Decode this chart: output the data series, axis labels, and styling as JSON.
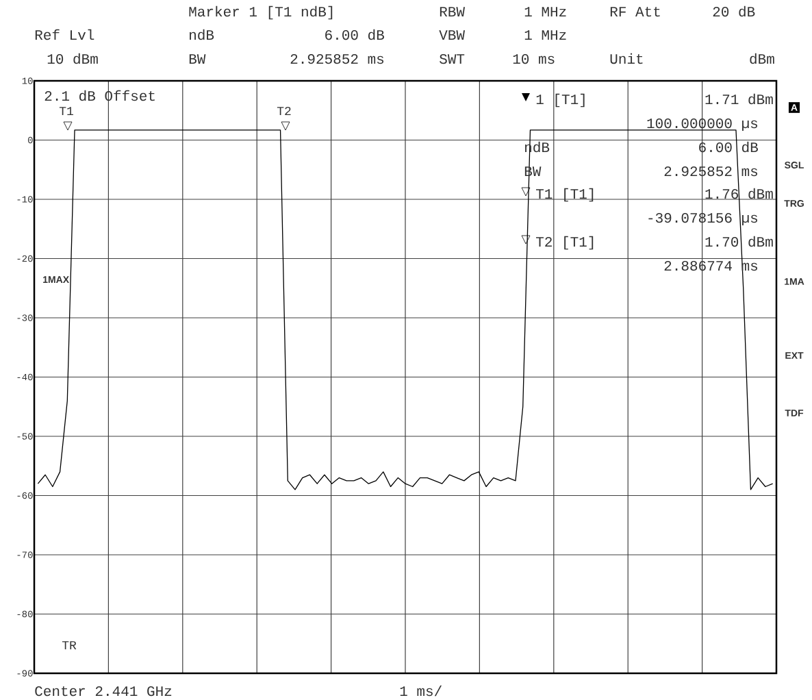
{
  "chart_data": {
    "type": "line",
    "categories": [
      null,
      null,
      null,
      null,
      null,
      null,
      null,
      null,
      null,
      null,
      null,
      null,
      null,
      null,
      null,
      null,
      null,
      null,
      null,
      null,
      null,
      null,
      null,
      null,
      null,
      null,
      null,
      null,
      null,
      null,
      null,
      null,
      null,
      null,
      null,
      null,
      null,
      null,
      null,
      null,
      null,
      null,
      null,
      null,
      null,
      null,
      null,
      null,
      null,
      null,
      null,
      null,
      null,
      null,
      null,
      null,
      null,
      null,
      null,
      null,
      null,
      null,
      null,
      null,
      null,
      null,
      null,
      null,
      null,
      null,
      null,
      null,
      null,
      null,
      null,
      null,
      null,
      null,
      null,
      null,
      null,
      null,
      null,
      null,
      null,
      null,
      null,
      null,
      null,
      null,
      null,
      null,
      null,
      null,
      null,
      null,
      null,
      null,
      null,
      null,
      null
    ],
    "ylim": [
      -90,
      10
    ],
    "yticks": [
      -90,
      -80,
      -70,
      -60,
      -50,
      -40,
      -30,
      -20,
      -10,
      0,
      10
    ],
    "grid": true,
    "tick_labels": "y",
    "series": [
      {
        "color": "#000000",
        "values": [
          -58,
          -56.5,
          -58.5,
          -56,
          -44,
          1.7,
          1.7,
          1.7,
          1.7,
          1.7,
          1.7,
          1.7,
          1.7,
          1.7,
          1.7,
          1.7,
          1.7,
          1.7,
          1.7,
          1.7,
          1.7,
          1.7,
          1.7,
          1.7,
          1.7,
          1.7,
          1.7,
          1.7,
          1.7,
          1.7,
          1.7,
          1.7,
          1.7,
          1.7,
          -57.5,
          -59,
          -57,
          -56.5,
          -58,
          -56.5,
          -58,
          -57,
          -57.5,
          -57.5,
          -57,
          -58,
          -57.5,
          -56,
          -58.5,
          -57,
          -58,
          -58.5,
          -57,
          -57,
          -57.5,
          -58,
          -56.5,
          -57,
          -57.5,
          -56.5,
          -56,
          -58.5,
          -57,
          -57.5,
          -57,
          -57.5,
          -45,
          1.7,
          1.7,
          1.7,
          1.7,
          1.7,
          1.7,
          1.7,
          1.7,
          1.7,
          1.7,
          1.7,
          1.7,
          1.7,
          1.7,
          1.7,
          1.7,
          1.7,
          1.7,
          1.7,
          1.7,
          1.7,
          1.7,
          1.7,
          1.7,
          1.7,
          1.7,
          1.7,
          1.7,
          1.7,
          -25,
          -59,
          -57,
          -58.5,
          -58
        ]
      }
    ],
    "annotations": [
      "Marker 1 [T1 ndB]",
      "RBW",
      "1 MHz",
      "RF Att",
      "20 dB",
      "Ref Lvl",
      "ndB",
      "6.00 dB",
      "VBW",
      "1 MHz",
      "10 dBm",
      "BW",
      "2.925852 ms",
      "SWT",
      "10 ms",
      "Unit",
      "dBm",
      "1 [T1]",
      "1.71 dBm",
      "100.000000 µs",
      "ndB",
      "6.00 dB",
      "BW",
      "2.925852 ms",
      "T1 [T1]",
      "1.76 dBm",
      "-39.078156 µs",
      "T2 [T1]",
      "1.70 dBm",
      "2.886774 ms",
      "2.1 dB Offset",
      "1MAX",
      "TR",
      "A",
      "SGL",
      "TRG",
      "1MA",
      "EXT",
      "TDF",
      "Center 2.441 GHz",
      "1 ms/",
      "T1",
      "T2"
    ]
  }
}
